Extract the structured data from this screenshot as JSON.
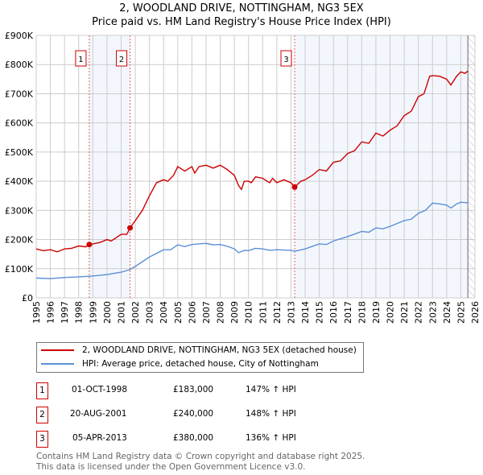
{
  "chart_data": {
    "type": "line",
    "title": "2, WOODLAND DRIVE, NOTTINGHAM, NG3 5EX",
    "subtitle": "Price paid vs. HM Land Registry's House Price Index (HPI)",
    "xlim": [
      1995,
      2026
    ],
    "ylim": [
      0,
      900000
    ],
    "y_ticks": [
      {
        "v": 0,
        "label": "£0"
      },
      {
        "v": 100000,
        "label": "£100K"
      },
      {
        "v": 200000,
        "label": "£200K"
      },
      {
        "v": 300000,
        "label": "£300K"
      },
      {
        "v": 400000,
        "label": "£400K"
      },
      {
        "v": 500000,
        "label": "£500K"
      },
      {
        "v": 600000,
        "label": "£600K"
      },
      {
        "v": 700000,
        "label": "£700K"
      },
      {
        "v": 800000,
        "label": "£800K"
      },
      {
        "v": 900000,
        "label": "£900K"
      }
    ],
    "x_ticks": [
      "1995",
      "1996",
      "1997",
      "1998",
      "1999",
      "2000",
      "2001",
      "2002",
      "2003",
      "2004",
      "2005",
      "2006",
      "2007",
      "2008",
      "2009",
      "2010",
      "2011",
      "2012",
      "2013",
      "2014",
      "2015",
      "2016",
      "2017",
      "2018",
      "2019",
      "2020",
      "2021",
      "2022",
      "2023",
      "2024",
      "2025",
      "2026"
    ],
    "grid": true,
    "series": [
      {
        "name": "2, WOODLAND DRIVE, NOTTINGHAM, NG3 5EX (detached house)",
        "color": "#cc0000",
        "x": [
          1995,
          1995.5,
          1996,
          1996.5,
          1997,
          1997.5,
          1998,
          1998.5,
          1998.75,
          1999,
          1999.5,
          2000,
          2000.3,
          2001,
          2001.4,
          2001.63,
          2002,
          2002.5,
          2003,
          2003.5,
          2004,
          2004.3,
          2004.7,
          2005,
          2005.5,
          2006,
          2006.2,
          2006.5,
          2007,
          2007.5,
          2008,
          2008.5,
          2009,
          2009.3,
          2009.5,
          2009.7,
          2010,
          2010.2,
          2010.5,
          2011,
          2011.5,
          2011.7,
          2012,
          2012.5,
          2013,
          2013.26,
          2013.7,
          2014,
          2014.5,
          2015,
          2015.5,
          2016,
          2016.5,
          2017,
          2017.5,
          2018,
          2018.5,
          2019,
          2019.5,
          2020,
          2020.5,
          2021,
          2021.5,
          2022,
          2022.4,
          2022.8,
          2023,
          2023.5,
          2024,
          2024.3,
          2024.7,
          2025,
          2025.3,
          2025.5
        ],
        "y": [
          168000,
          162000,
          165000,
          158000,
          168000,
          170000,
          178000,
          175000,
          183000,
          185000,
          190000,
          200000,
          195000,
          218000,
          218000,
          240000,
          265000,
          300000,
          350000,
          395000,
          405000,
          400000,
          420000,
          450000,
          435000,
          450000,
          428000,
          450000,
          455000,
          445000,
          455000,
          440000,
          420000,
          385000,
          372000,
          400000,
          400000,
          395000,
          415000,
          410000,
          395000,
          410000,
          395000,
          405000,
          395000,
          380000,
          400000,
          405000,
          420000,
          440000,
          435000,
          465000,
          470000,
          495000,
          505000,
          535000,
          530000,
          565000,
          555000,
          575000,
          590000,
          625000,
          640000,
          690000,
          700000,
          760000,
          762000,
          760000,
          750000,
          730000,
          760000,
          775000,
          770000,
          778000
        ]
      },
      {
        "name": "HPI: Average price, detached house, City of Nottingham",
        "color": "#5b8fd6",
        "x": [
          1995,
          1996,
          1997,
          1998,
          1998.75,
          1999,
          2000,
          2001,
          2001.63,
          2002,
          2003,
          2004,
          2004.5,
          2005,
          2005.5,
          2006,
          2007,
          2007.5,
          2008,
          2008.5,
          2009,
          2009.3,
          2009.7,
          2010,
          2010.5,
          2011,
          2011.5,
          2012,
          2013,
          2013.26,
          2014,
          2015,
          2015.5,
          2016,
          2017,
          2018,
          2018.5,
          2019,
          2019.5,
          2020,
          2021,
          2021.5,
          2022,
          2022.5,
          2023,
          2023.5,
          2024,
          2024.3,
          2024.7,
          2025,
          2025.5
        ],
        "y": [
          68000,
          66000,
          70000,
          72000,
          74000,
          75000,
          80000,
          88000,
          97000,
          108000,
          140000,
          165000,
          165000,
          182000,
          176000,
          183000,
          187000,
          182000,
          183000,
          177000,
          168000,
          155000,
          163000,
          162000,
          170000,
          168000,
          163000,
          165000,
          163000,
          160000,
          168000,
          185000,
          183000,
          195000,
          210000,
          228000,
          225000,
          240000,
          237000,
          245000,
          265000,
          270000,
          290000,
          300000,
          325000,
          322000,
          318000,
          308000,
          322000,
          328000,
          326000
        ]
      }
    ],
    "sales": [
      {
        "id": "1",
        "x": 1998.75,
        "price": 183000,
        "date": "01-OCT-1998",
        "price_label": "£183,000",
        "hpi": "147% ↑ HPI"
      },
      {
        "id": "2",
        "x": 2001.63,
        "price": 240000,
        "date": "20-AUG-2001",
        "price_label": "£240,000",
        "hpi": "148% ↑ HPI"
      },
      {
        "id": "3",
        "x": 2013.26,
        "price": 380000,
        "date": "05-APR-2013",
        "price_label": "£380,000",
        "hpi": "136% ↑ HPI"
      }
    ],
    "hatch_from": 2025.5,
    "legend_placement": "below"
  },
  "footer": [
    "Contains HM Land Registry data © Crown copyright and database right 2025.",
    "This data is licensed under the Open Government Licence v3.0."
  ]
}
